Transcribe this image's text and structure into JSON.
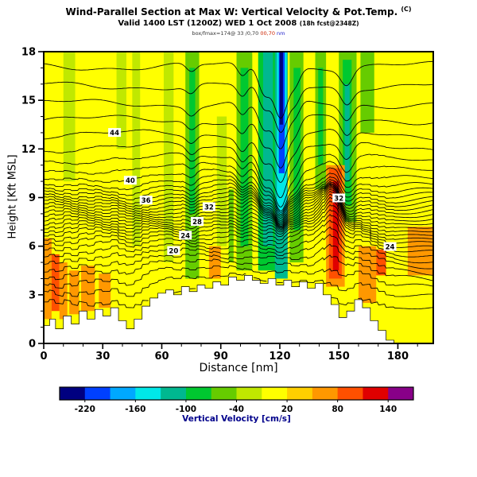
{
  "header": {
    "title_main": "Wind-Parallel Section at Max W: Vertical Velocity & Pot.Temp.",
    "title_unit": "(C)",
    "subtitle_main": "Valid 1400 LST (1200Z) WED 1 Oct 2008",
    "subtitle_small": "(18h fcst@2348Z)",
    "note_parts": [
      {
        "text": "box/fmax=174@ 33 /0,70 ",
        "color": "#333333"
      },
      {
        "text": "00,70",
        "color": "#cc2200"
      },
      {
        "text": " nm",
        "color": "#2222cc"
      }
    ]
  },
  "chart_data": {
    "type": "heatmap",
    "title": "Wind-Parallel Section at Max W: Vertical Velocity & Pot.Temp. (C)",
    "subtitle": "Valid 1400 LST (1200Z) WED 1 Oct 2008 (18h fcst@2348Z)",
    "xlabel": "Distance [nm]",
    "ylabel": "Height [Kft MSL]",
    "xlim": [
      0,
      198
    ],
    "ylim": [
      0,
      18
    ],
    "xticks": [
      0,
      30,
      60,
      90,
      120,
      150,
      180
    ],
    "xminor_step": 10,
    "yticks": [
      0,
      3,
      6,
      9,
      12,
      15,
      18
    ],
    "yminor_step": 1,
    "colorbar": {
      "label": "Vertical Velocity [cm/s]",
      "label_color": "#00008b",
      "min": -250,
      "max": 170,
      "step": 30,
      "ticks": [
        -220,
        -160,
        -100,
        -40,
        20,
        80,
        140
      ],
      "colors": [
        "#000080",
        "#0040ff",
        "#00a8ff",
        "#00e8e8",
        "#00b890",
        "#00c830",
        "#66cc00",
        "#c0e800",
        "#ffff00",
        "#ffd000",
        "#ff9800",
        "#ff5000",
        "#e00000",
        "#880088"
      ]
    },
    "field": {
      "background_value": 15,
      "bands": [
        [
          10,
          16,
          10,
          18,
          -20
        ],
        [
          37,
          42,
          12,
          18,
          -20
        ],
        [
          45,
          49,
          6,
          18,
          -20
        ],
        [
          61,
          66,
          5,
          18,
          -20
        ],
        [
          88,
          93,
          6,
          14,
          -20
        ],
        [
          72,
          79,
          4,
          18,
          -55
        ],
        [
          74,
          77,
          8,
          17,
          -85
        ],
        [
          94,
          96.5,
          5,
          9.5,
          -55
        ],
        [
          98,
          106,
          4.5,
          18,
          -55
        ],
        [
          100,
          104,
          6,
          17,
          -85
        ],
        [
          109,
          118,
          4.5,
          18,
          -85
        ],
        [
          111.5,
          116.5,
          6,
          18,
          -115
        ],
        [
          117.5,
          124,
          4,
          18,
          -115
        ],
        [
          118.5,
          123.5,
          8,
          18,
          -145
        ],
        [
          119.5,
          122.5,
          10.5,
          18,
          -200
        ],
        [
          119.9,
          121.6,
          13.5,
          18,
          -230
        ],
        [
          125,
          132,
          5,
          18,
          -55
        ],
        [
          127,
          130.5,
          7,
          17,
          -85
        ],
        [
          138,
          143.5,
          9.5,
          18,
          -55
        ],
        [
          139.5,
          142,
          11,
          17,
          -85
        ],
        [
          150,
          159,
          7.5,
          18,
          -55
        ],
        [
          152,
          156.5,
          8.5,
          17.5,
          -85
        ],
        [
          153,
          155.5,
          10,
          16,
          -115
        ],
        [
          161,
          168,
          13,
          18,
          -55
        ],
        [
          0,
          4,
          1.5,
          6.5,
          65
        ],
        [
          4,
          8,
          2,
          5.5,
          95
        ],
        [
          8,
          12,
          1.5,
          5,
          65
        ],
        [
          13,
          18,
          1.8,
          4.5,
          65
        ],
        [
          19,
          26,
          2,
          4.8,
          65
        ],
        [
          28,
          34,
          2.2,
          4.3,
          65
        ],
        [
          84,
          90,
          4,
          6,
          65
        ],
        [
          143.5,
          153,
          3.5,
          11,
          65
        ],
        [
          145,
          151.5,
          4,
          10.8,
          95
        ],
        [
          147,
          150,
          4.5,
          10,
          125
        ],
        [
          160,
          169,
          2.5,
          6,
          65
        ],
        [
          169,
          174,
          4.2,
          5.8,
          95
        ],
        [
          185,
          198,
          4.2,
          7.2,
          65
        ]
      ]
    },
    "terrain": [
      [
        0,
        1.1
      ],
      [
        3,
        1.5
      ],
      [
        6,
        0.9
      ],
      [
        10,
        1.7
      ],
      [
        14,
        1.2
      ],
      [
        18,
        2.0
      ],
      [
        22,
        1.5
      ],
      [
        26,
        2.1
      ],
      [
        30,
        1.7
      ],
      [
        34,
        2.2
      ],
      [
        38,
        1.4
      ],
      [
        42,
        0.9
      ],
      [
        46,
        1.5
      ],
      [
        50,
        2.3
      ],
      [
        54,
        2.8
      ],
      [
        58,
        3.1
      ],
      [
        62,
        3.3
      ],
      [
        66,
        3.0
      ],
      [
        70,
        3.5
      ],
      [
        74,
        3.2
      ],
      [
        78,
        3.6
      ],
      [
        82,
        3.4
      ],
      [
        86,
        3.8
      ],
      [
        90,
        3.6
      ],
      [
        94,
        4.1
      ],
      [
        98,
        3.9
      ],
      [
        102,
        4.2
      ],
      [
        106,
        3.9
      ],
      [
        110,
        3.7
      ],
      [
        114,
        4.0
      ],
      [
        118,
        3.6
      ],
      [
        122,
        3.9
      ],
      [
        126,
        3.5
      ],
      [
        130,
        3.8
      ],
      [
        134,
        3.4
      ],
      [
        138,
        3.7
      ],
      [
        142,
        3.0
      ],
      [
        146,
        2.4
      ],
      [
        150,
        1.6
      ],
      [
        154,
        2.0
      ],
      [
        158,
        2.7
      ],
      [
        162,
        2.2
      ],
      [
        166,
        1.4
      ],
      [
        170,
        0.8
      ],
      [
        174,
        0.2
      ],
      [
        178,
        0
      ],
      [
        198,
        0
      ]
    ],
    "contours": {
      "color": "#000000",
      "levels": [
        [
          15,
          2.8
        ],
        [
          16,
          3.5
        ],
        [
          17,
          4.1
        ],
        [
          18,
          4.6
        ],
        [
          19,
          5.0
        ],
        [
          20,
          5.4
        ],
        [
          21,
          5.75
        ],
        [
          22,
          6.1
        ],
        [
          23,
          6.4
        ],
        [
          24,
          6.65
        ],
        [
          25,
          6.9
        ],
        [
          26,
          7.1
        ],
        [
          27,
          7.3
        ],
        [
          28,
          7.5
        ],
        [
          29,
          7.7
        ],
        [
          30,
          7.9
        ],
        [
          31,
          8.1
        ],
        [
          32,
          8.3
        ],
        [
          33,
          8.5
        ],
        [
          34,
          8.7
        ],
        [
          35,
          8.9
        ],
        [
          36,
          9.1
        ],
        [
          37,
          9.35
        ],
        [
          38,
          9.6
        ],
        [
          39,
          9.9
        ],
        [
          40,
          10.3
        ],
        [
          41,
          10.8
        ],
        [
          42,
          11.4
        ],
        [
          43,
          12.1
        ],
        [
          44,
          12.9
        ],
        [
          45,
          13.8
        ],
        [
          46,
          14.8
        ],
        [
          47,
          15.9
        ],
        [
          48,
          17.1
        ]
      ],
      "folds": [
        [
          75,
          2.5,
          0.5
        ],
        [
          101,
          2.5,
          0.8
        ],
        [
          112,
          3.0,
          1.6
        ],
        [
          120.5,
          3.5,
          3.0
        ],
        [
          128,
          2.5,
          0.9
        ],
        [
          154,
          3.0,
          1.0
        ]
      ],
      "ridge": {
        "x": 147,
        "width": 4.5,
        "height": 1.5
      },
      "labels": [
        [
          44,
          36
        ],
        [
          40,
          44
        ],
        [
          36,
          52
        ],
        [
          32,
          84
        ],
        [
          28,
          78
        ],
        [
          24,
          72
        ],
        [
          20,
          66
        ],
        [
          24,
          176
        ],
        [
          32,
          150
        ]
      ]
    }
  }
}
